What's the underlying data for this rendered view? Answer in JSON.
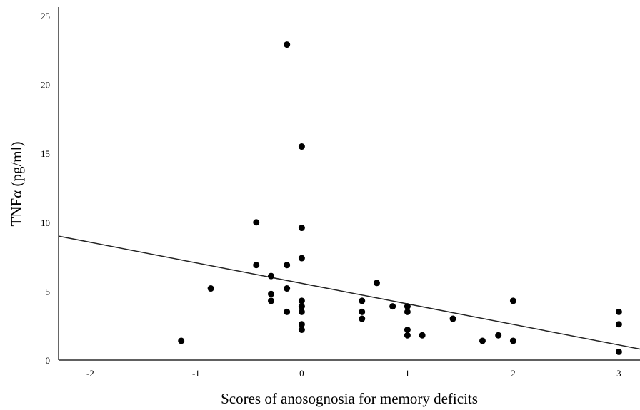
{
  "chart_data": {
    "type": "scatter",
    "title": "",
    "xlabel": "Scores of anosognosia for memory deficits",
    "ylabel": "TNFα (pg/ml)",
    "xlim": [
      -2.3,
      3.2
    ],
    "ylim": [
      0,
      25
    ],
    "x_ticks": [
      "-2",
      "-1",
      "0",
      "1",
      "2",
      "3"
    ],
    "y_ticks": [
      "0",
      "5",
      "10",
      "15",
      "20",
      "25"
    ],
    "grid": false,
    "legend": "none",
    "marker_color": "#000000",
    "fit_line": {
      "x": [
        -2.3,
        3.2
      ],
      "y": [
        9.0,
        0.8
      ]
    },
    "points": [
      {
        "x": -1.14,
        "y": 1.4
      },
      {
        "x": -0.86,
        "y": 5.2
      },
      {
        "x": -0.43,
        "y": 10.0
      },
      {
        "x": -0.43,
        "y": 6.9
      },
      {
        "x": -0.29,
        "y": 6.1
      },
      {
        "x": -0.29,
        "y": 4.8
      },
      {
        "x": -0.29,
        "y": 4.3
      },
      {
        "x": -0.14,
        "y": 22.9
      },
      {
        "x": -0.14,
        "y": 6.9
      },
      {
        "x": -0.14,
        "y": 5.2
      },
      {
        "x": -0.14,
        "y": 3.5
      },
      {
        "x": 0.0,
        "y": 15.5
      },
      {
        "x": 0.0,
        "y": 9.6
      },
      {
        "x": 0.0,
        "y": 7.4
      },
      {
        "x": 0.0,
        "y": 4.3
      },
      {
        "x": 0.0,
        "y": 3.9
      },
      {
        "x": 0.0,
        "y": 3.5
      },
      {
        "x": 0.0,
        "y": 2.6
      },
      {
        "x": 0.0,
        "y": 2.2
      },
      {
        "x": 0.57,
        "y": 4.3
      },
      {
        "x": 0.57,
        "y": 3.5
      },
      {
        "x": 0.57,
        "y": 3.0
      },
      {
        "x": 0.71,
        "y": 5.6
      },
      {
        "x": 0.86,
        "y": 3.9
      },
      {
        "x": 1.0,
        "y": 3.9
      },
      {
        "x": 1.0,
        "y": 3.5
      },
      {
        "x": 1.0,
        "y": 2.2
      },
      {
        "x": 1.0,
        "y": 1.8
      },
      {
        "x": 1.14,
        "y": 1.8
      },
      {
        "x": 1.43,
        "y": 3.0
      },
      {
        "x": 1.71,
        "y": 1.4
      },
      {
        "x": 1.86,
        "y": 1.8
      },
      {
        "x": 2.0,
        "y": 4.3
      },
      {
        "x": 2.0,
        "y": 1.4
      },
      {
        "x": 3.0,
        "y": 3.5
      },
      {
        "x": 3.0,
        "y": 2.6
      },
      {
        "x": 3.0,
        "y": 0.6
      }
    ]
  }
}
